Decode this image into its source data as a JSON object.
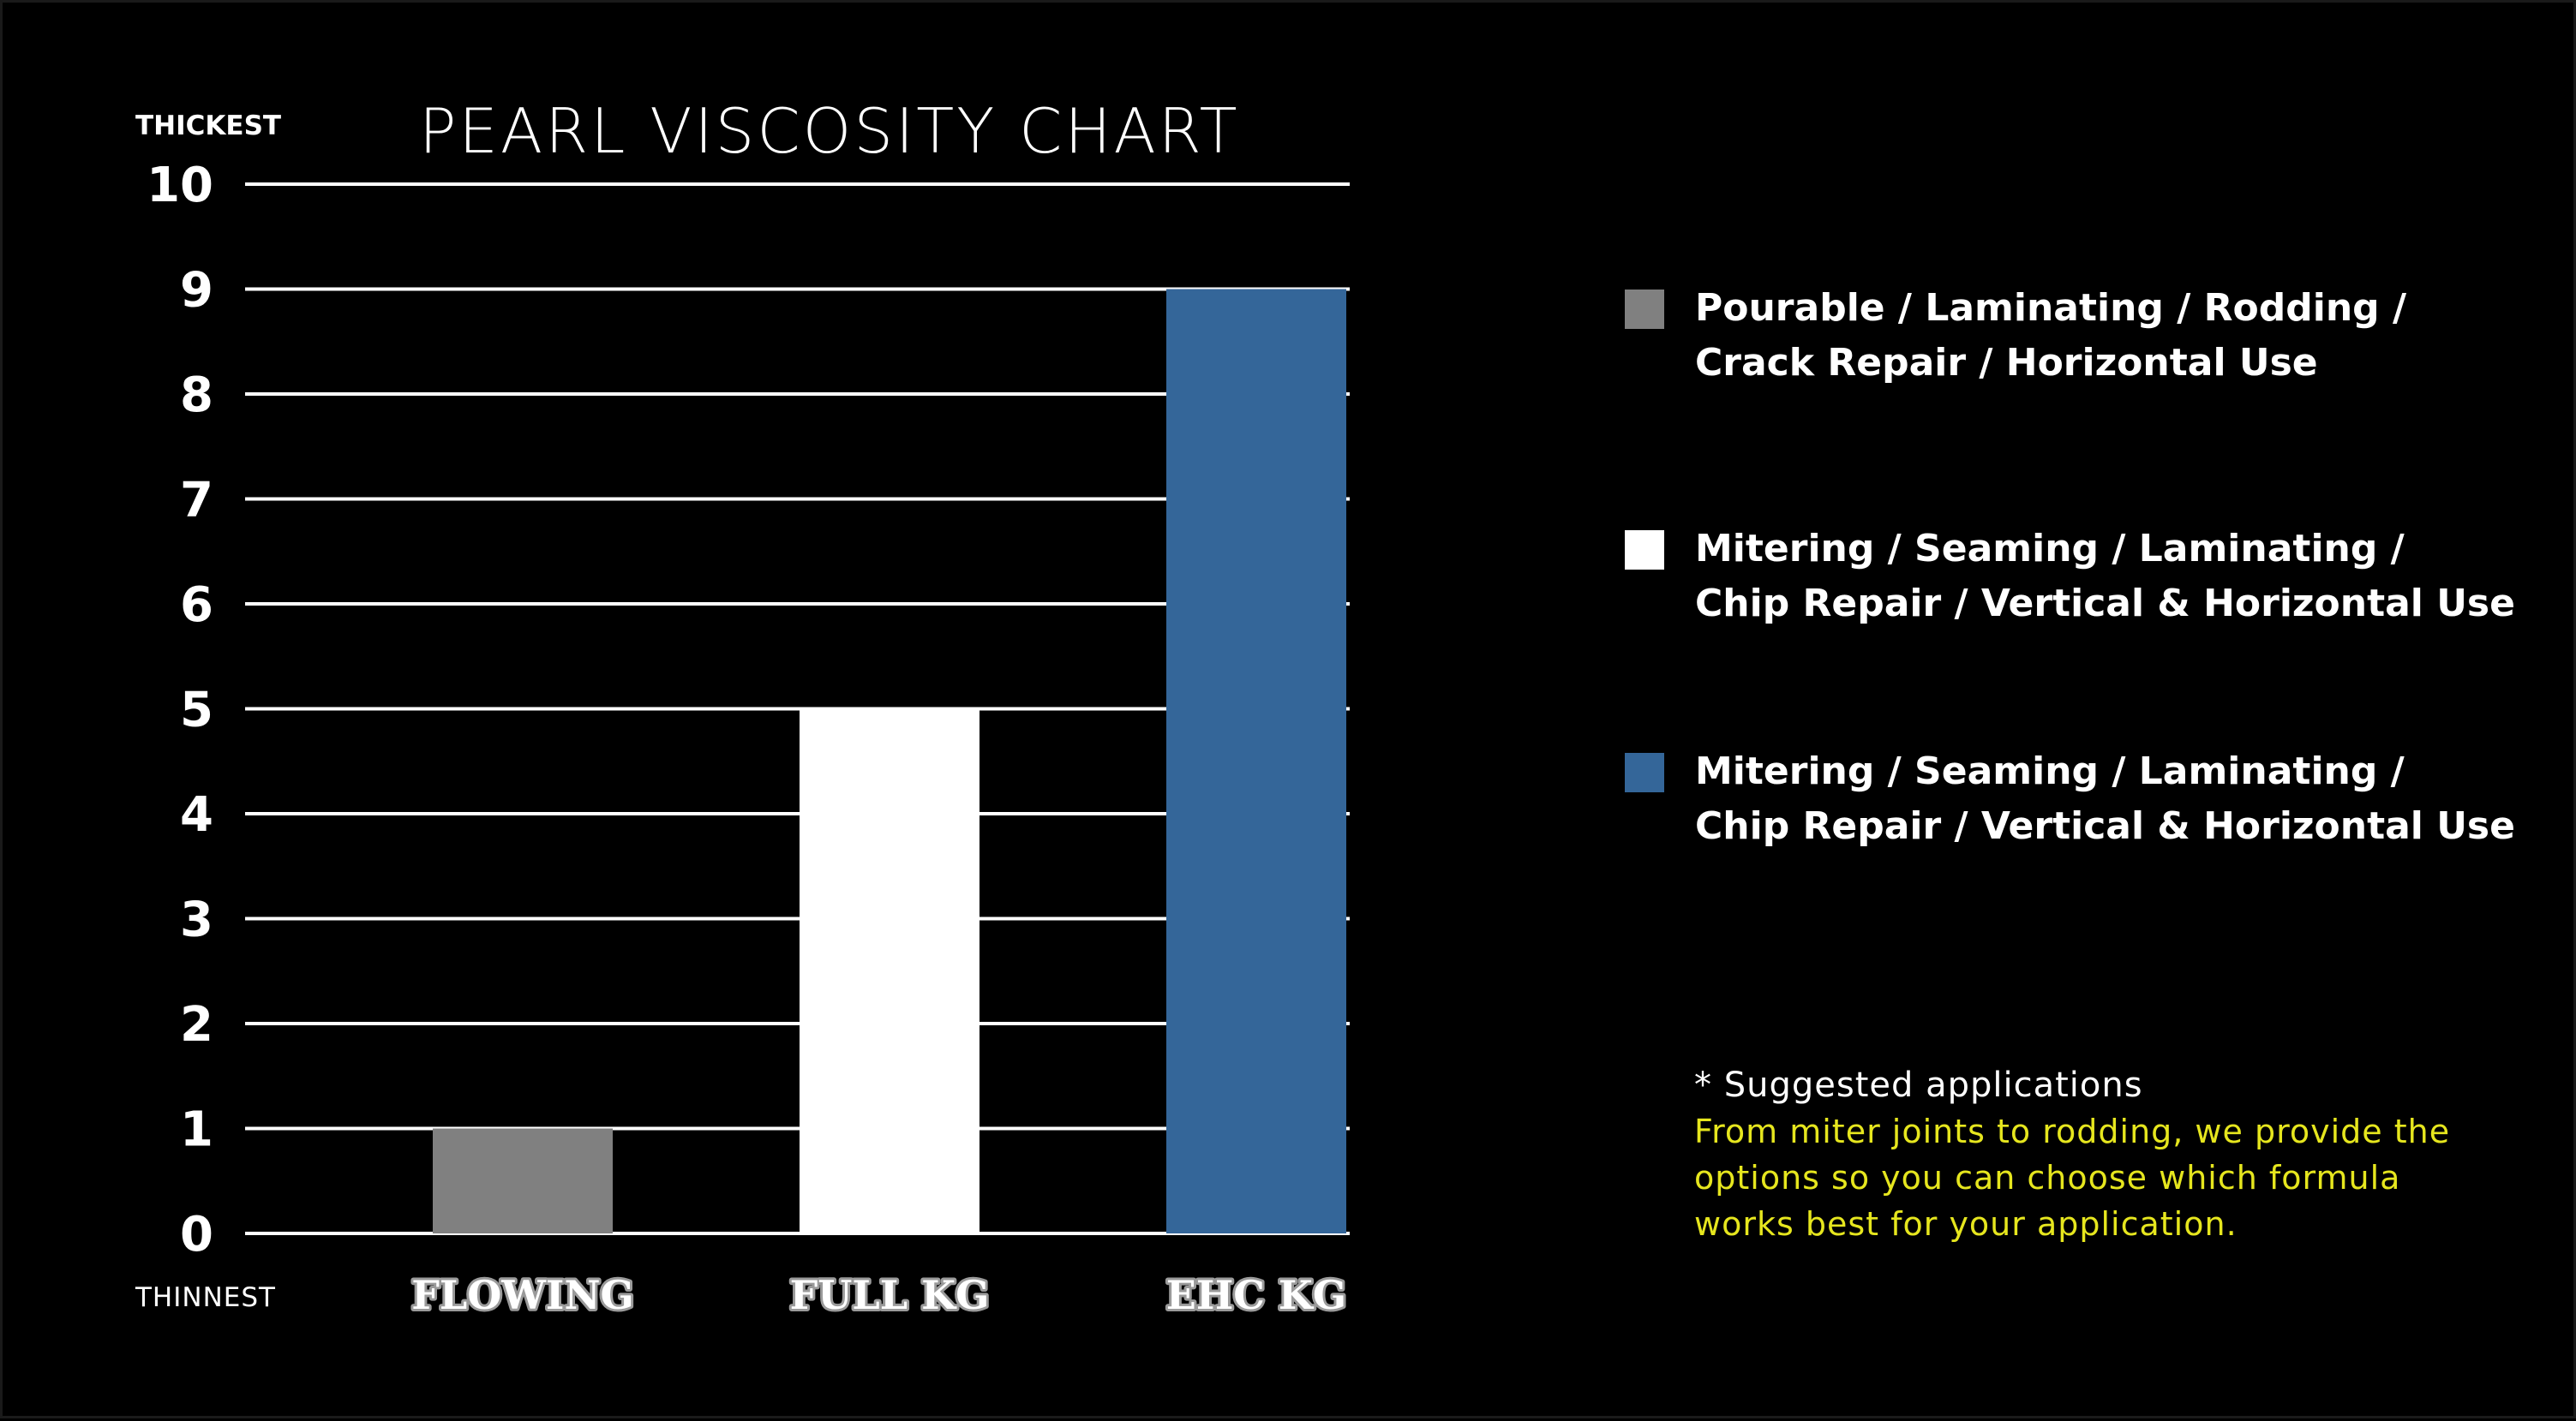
{
  "chart_data": {
    "type": "bar",
    "title": "PEARL VISCOSITY CHART",
    "ylabel_top": "THICKEST",
    "ylabel_bottom": "THINNEST",
    "ylim": [
      0,
      10
    ],
    "yticks": [
      0,
      1,
      2,
      3,
      4,
      5,
      6,
      7,
      8,
      9,
      10
    ],
    "categories": [
      "FLOWING",
      "FULL KG",
      "EHC KG"
    ],
    "values": [
      1,
      5,
      9
    ],
    "colors": [
      "#808080",
      "#ffffff",
      "#346699"
    ],
    "grid": true
  },
  "legend": [
    {
      "color": "#808080",
      "text": "Pourable / Laminating / Rodding /\nCrack Repair / Horizontal Use"
    },
    {
      "color": "#ffffff",
      "text": "Mitering / Seaming / Laminating /\nChip Repair / Vertical & Horizontal Use"
    },
    {
      "color": "#346699",
      "text": "Mitering / Seaming / Laminating /\nChip Repair / Vertical & Horizontal Use"
    }
  ],
  "note": {
    "heading": "* Suggested applications",
    "body": "From miter joints to rodding, we provide the\noptions so you can choose which formula\nworks best for your application."
  }
}
